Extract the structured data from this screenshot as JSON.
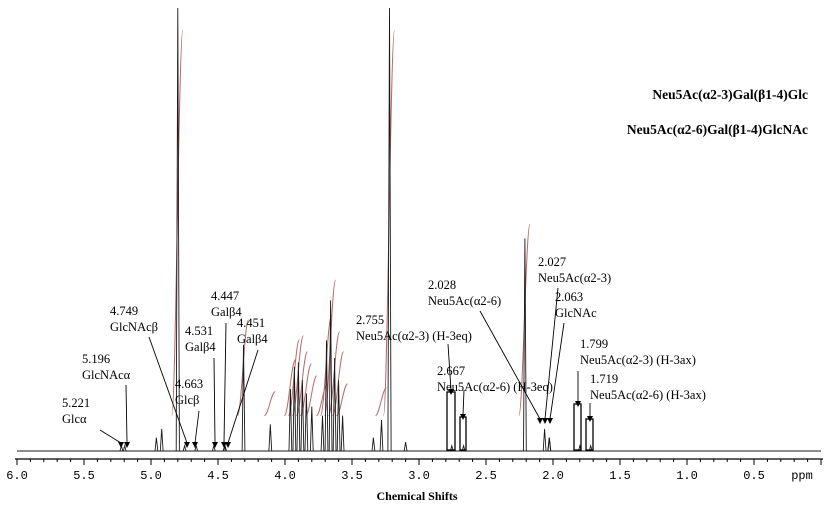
{
  "chart_data": {
    "type": "line",
    "title_lines": [
      "Neu5Ac(α2-3)Gal(β1-4)Glc",
      "Neu5Ac(α2-6)Gal(β1-4)GlcNAc"
    ],
    "xlabel": "Chemical Shifts",
    "x_unit": "ppm",
    "xlim": [
      6.0,
      0.0
    ],
    "x_reversed": true,
    "x_ticks": [
      "6.0",
      "5.5",
      "5.0",
      "4.5",
      "4.0",
      "3.5",
      "3.0",
      "2.5",
      "2.0",
      "1.5",
      "1.0",
      "0.5"
    ],
    "y_scale": "relative intensity (arbitrary)",
    "peaks": [
      {
        "ppm": 5.221,
        "height": 0.012
      },
      {
        "ppm": 5.196,
        "height": 0.012
      },
      {
        "ppm": 4.96,
        "height": 0.03
      },
      {
        "ppm": 4.92,
        "height": 0.05
      },
      {
        "ppm": 4.8,
        "height": 1.0
      },
      {
        "ppm": 4.749,
        "height": 0.012
      },
      {
        "ppm": 4.663,
        "height": 0.012
      },
      {
        "ppm": 4.531,
        "height": 0.012
      },
      {
        "ppm": 4.451,
        "height": 0.012
      },
      {
        "ppm": 4.447,
        "height": 0.012
      },
      {
        "ppm": 4.31,
        "height": 0.24
      },
      {
        "ppm": 4.11,
        "height": 0.06
      },
      {
        "ppm": 3.96,
        "height": 0.14
      },
      {
        "ppm": 3.93,
        "height": 0.19
      },
      {
        "ppm": 3.9,
        "height": 0.2
      },
      {
        "ppm": 3.87,
        "height": 0.16
      },
      {
        "ppm": 3.84,
        "height": 0.13
      },
      {
        "ppm": 3.8,
        "height": 0.1
      },
      {
        "ppm": 3.72,
        "height": 0.08
      },
      {
        "ppm": 3.69,
        "height": 0.25
      },
      {
        "ppm": 3.66,
        "height": 0.34
      },
      {
        "ppm": 3.63,
        "height": 0.21
      },
      {
        "ppm": 3.6,
        "height": 0.16
      },
      {
        "ppm": 3.57,
        "height": 0.08
      },
      {
        "ppm": 3.34,
        "height": 0.03
      },
      {
        "ppm": 3.28,
        "height": 0.07
      },
      {
        "ppm": 3.22,
        "height": 1.0
      },
      {
        "ppm": 3.1,
        "height": 0.02
      },
      {
        "ppm": 2.755,
        "height": 0.012
      },
      {
        "ppm": 2.667,
        "height": 0.012
      },
      {
        "ppm": 2.21,
        "height": 0.48
      },
      {
        "ppm": 2.063,
        "height": 0.05
      },
      {
        "ppm": 2.028,
        "height": 0.03
      },
      {
        "ppm": 2.027,
        "height": 0.03
      },
      {
        "ppm": 1.799,
        "height": 0.012
      },
      {
        "ppm": 1.719,
        "height": 0.012
      }
    ],
    "annotations": [
      {
        "ppm": 5.221,
        "value": "5.221",
        "label": "Glcα"
      },
      {
        "ppm": 5.196,
        "value": "5.196",
        "label": "GlcNAcα"
      },
      {
        "ppm": 4.749,
        "value": "4.749",
        "label": "GlcNAcβ"
      },
      {
        "ppm": 4.663,
        "value": "4.663",
        "label": "Glcβ"
      },
      {
        "ppm": 4.531,
        "value": "4.531",
        "label": "Galβ4"
      },
      {
        "ppm": 4.447,
        "value": "4.447",
        "label": "Galβ4"
      },
      {
        "ppm": 4.451,
        "value": "4.451",
        "label": "Galβ4"
      },
      {
        "ppm": 2.755,
        "value": "2.755",
        "label": "Neu5Ac(α2-3) (H-3eq)"
      },
      {
        "ppm": 2.667,
        "value": "2.667",
        "label": "Neu5Ac(α2-6) (H-3eq)"
      },
      {
        "ppm": 2.028,
        "value": "2.028",
        "label": "Neu5Ac(α2-6)"
      },
      {
        "ppm": 2.027,
        "value": "2.027",
        "label": "Neu5Ac(α2-3)"
      },
      {
        "ppm": 2.063,
        "value": "2.063",
        "label": "GlcNAc"
      },
      {
        "ppm": 1.799,
        "value": "1.799",
        "label": "Neu5Ac(α2-3) (H-3ax)"
      },
      {
        "ppm": 1.719,
        "value": "1.719",
        "label": "Neu5Ac(α2-6) (H-3ax)"
      }
    ],
    "grid": false,
    "legend": "none",
    "colors": {
      "spectrum": "#1a1a1a",
      "integral": "#b96a6a",
      "text": "#000000"
    }
  }
}
